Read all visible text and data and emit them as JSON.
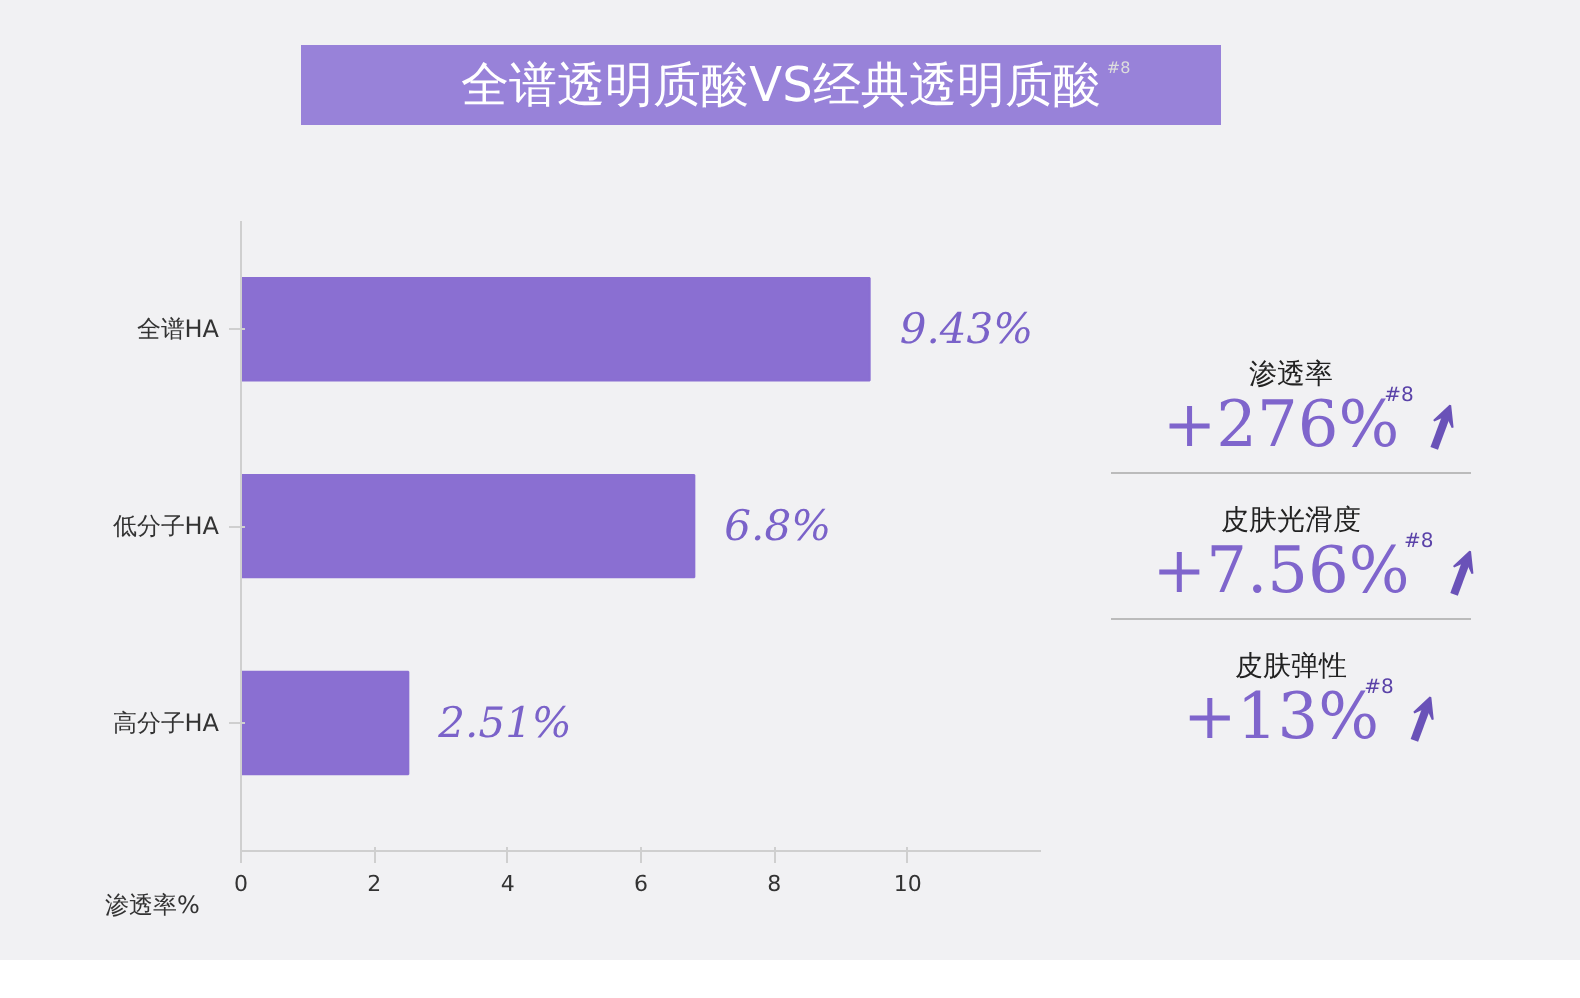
{
  "chart_data": [
    {
      "type": "bar",
      "orientation": "horizontal",
      "title": "全谱透明质酸VS经典透明质酸$^{#8}$",
      "xlabel": "渗透率%",
      "categories": [
        "全谱HA",
        "低分子HA",
        "高分子HA"
      ],
      "values": [
        9.43,
        6.8,
        2.51
      ],
      "color": "#8a6fd2",
      "value_labels": [
        "9.43%",
        "6.8%",
        "2.51%"
      ],
      "xlim": [
        0,
        12
      ],
      "xticks": [
        0,
        2,
        4,
        6,
        8,
        10
      ],
      "grid": false
    },
    {
      "type": "other",
      "annotations": [
        "渗透率",
        "+276%$^{#8}$",
        "皮肤光滑度",
        "+7.56%$^{#8}$",
        "皮肤弹性",
        "+13%$^{#8}$"
      ]
    }
  ]
}
